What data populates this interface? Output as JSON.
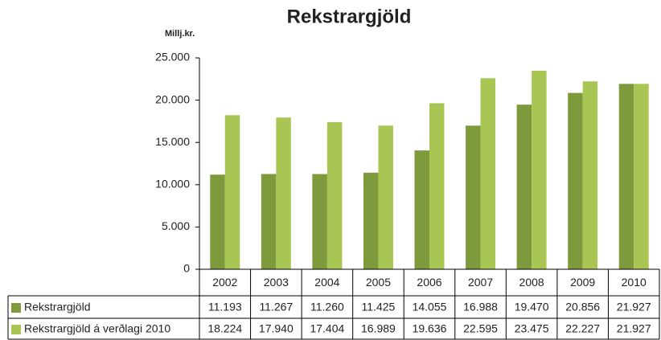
{
  "chart_data": {
    "type": "bar",
    "title": "Rekstrargjöld",
    "y_label": "Millj.kr.",
    "categories": [
      "2002",
      "2003",
      "2004",
      "2005",
      "2006",
      "2007",
      "2008",
      "2009",
      "2010"
    ],
    "series": [
      {
        "name": "Rekstrargjöld",
        "color": "#7f9a3c",
        "values": [
          11193,
          11267,
          11260,
          11425,
          14055,
          16988,
          19470,
          20856,
          21927
        ],
        "value_labels": [
          "11.193",
          "11.267",
          "11.260",
          "11.425",
          "14.055",
          "16.988",
          "19.470",
          "20.856",
          "21.927"
        ]
      },
      {
        "name": "Rekstrargjöld á verðlagi 2010",
        "color": "#a9c655",
        "values": [
          18224,
          17940,
          17404,
          16989,
          19636,
          22595,
          23475,
          22227,
          21927
        ],
        "value_labels": [
          "18.224",
          "17.940",
          "17.404",
          "16.989",
          "19.636",
          "22.595",
          "23.475",
          "22.227",
          "21.927"
        ]
      }
    ],
    "ylim": [
      0,
      25000
    ],
    "yticks": [
      0,
      {
        "value": 5000,
        "label": "5.000"
      },
      {
        "value": 10000,
        "label": "10.000"
      },
      {
        "value": 15000,
        "label": "15.000"
      },
      {
        "value": 20000,
        "label": "20.000"
      },
      {
        "value": 25000,
        "label": "25.000"
      }
    ]
  }
}
